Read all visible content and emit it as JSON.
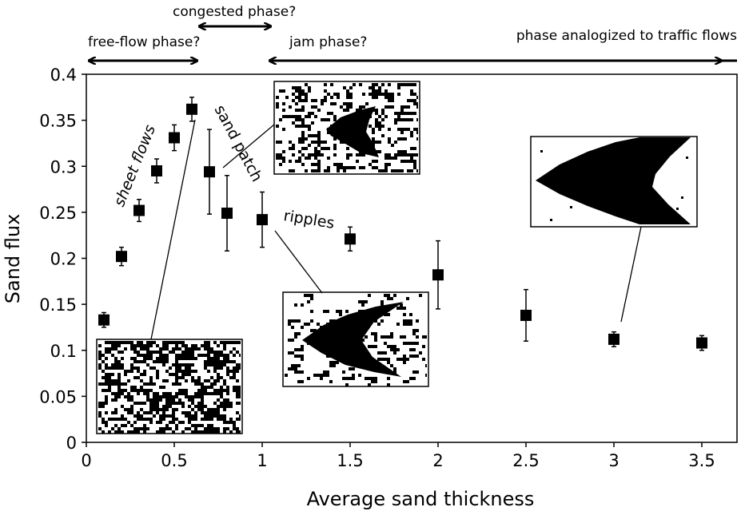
{
  "chart_data": {
    "type": "scatter",
    "xlabel": "Average sand thickness",
    "ylabel": "Sand flux",
    "xlim": [
      0,
      3.7
    ],
    "ylim": [
      0,
      0.4
    ],
    "x_ticks": [
      "0",
      "0.5",
      "1",
      "1.5",
      "2",
      "2.5",
      "3",
      "3.5"
    ],
    "y_ticks": [
      "0",
      "0.05",
      "0.1",
      "0.15",
      "0.2",
      "0.25",
      "0.3",
      "0.35",
      "0.4"
    ],
    "grid": false,
    "marker": "square",
    "points": [
      {
        "x": 0.1,
        "y": 0.133,
        "err": 0.008
      },
      {
        "x": 0.2,
        "y": 0.202,
        "err": 0.01
      },
      {
        "x": 0.3,
        "y": 0.252,
        "err": 0.012
      },
      {
        "x": 0.4,
        "y": 0.295,
        "err": 0.013
      },
      {
        "x": 0.5,
        "y": 0.331,
        "err": 0.014
      },
      {
        "x": 0.6,
        "y": 0.362,
        "err": 0.013
      },
      {
        "x": 0.7,
        "y": 0.294,
        "err": 0.046
      },
      {
        "x": 0.8,
        "y": 0.249,
        "err": 0.041
      },
      {
        "x": 1.0,
        "y": 0.242,
        "err": 0.03
      },
      {
        "x": 1.5,
        "y": 0.221,
        "err": 0.013
      },
      {
        "x": 2.0,
        "y": 0.182,
        "err": 0.037
      },
      {
        "x": 2.5,
        "y": 0.138,
        "err": 0.028
      },
      {
        "x": 3.0,
        "y": 0.112,
        "err": 0.008
      },
      {
        "x": 3.5,
        "y": 0.108,
        "err": 0.008
      }
    ],
    "phases": [
      {
        "label": "free-flow phase?",
        "x_start": 0,
        "x_end": 0.63
      },
      {
        "label": "congested phase?",
        "x_start": 0.63,
        "x_end": 1.0
      },
      {
        "label": "jam phase?",
        "x_start": 1.0,
        "x_end": 3.7
      },
      {
        "label": "phase analogized to traffic flows",
        "x_start": 1.0,
        "x_end": 3.7
      }
    ],
    "annotations": [
      "sheet flows",
      "sand patch",
      "ripples"
    ]
  }
}
